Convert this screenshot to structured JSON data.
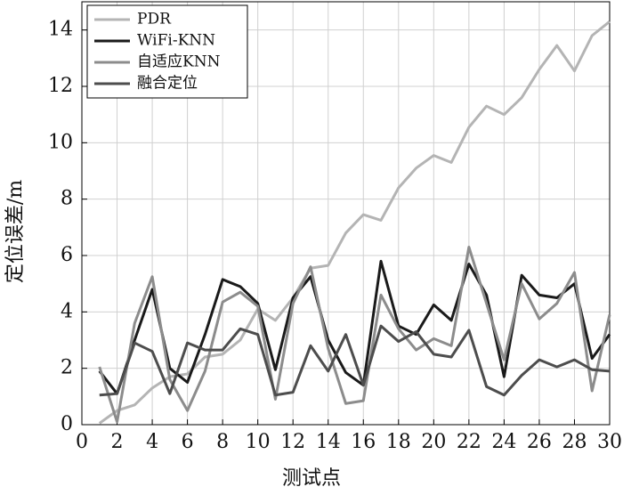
{
  "chart_data": {
    "type": "line",
    "xlabel": "测试点",
    "ylabel": "定位误差/m",
    "x": [
      1,
      2,
      3,
      4,
      5,
      6,
      7,
      8,
      9,
      10,
      11,
      12,
      13,
      14,
      15,
      16,
      17,
      18,
      19,
      20,
      21,
      22,
      23,
      24,
      25,
      26,
      27,
      28,
      29,
      30
    ],
    "series": [
      {
        "name": "PDR",
        "color": "#b4b4b4",
        "values": [
          0.05,
          0.5,
          0.7,
          1.3,
          1.7,
          1.8,
          2.4,
          2.5,
          3.0,
          4.1,
          3.7,
          4.5,
          5.55,
          5.65,
          6.8,
          7.45,
          7.25,
          8.4,
          9.1,
          9.55,
          9.3,
          10.55,
          11.3,
          11.0,
          11.6,
          12.6,
          13.45,
          12.55,
          13.8,
          14.3
        ]
      },
      {
        "name": "WiFi-KNN",
        "color": "#1a1a1a",
        "values": [
          1.9,
          1.1,
          3.0,
          4.8,
          2.0,
          1.5,
          3.2,
          5.15,
          4.9,
          4.3,
          1.95,
          4.5,
          5.25,
          3.0,
          1.85,
          1.4,
          5.8,
          3.5,
          3.2,
          4.25,
          3.7,
          5.7,
          4.6,
          1.7,
          5.3,
          4.6,
          4.5,
          5.0,
          2.35,
          3.2
        ]
      },
      {
        "name": "自适应KNN",
        "color": "#8c8c8c",
        "values": [
          2.05,
          0.1,
          3.6,
          5.25,
          1.6,
          0.5,
          1.9,
          4.35,
          4.7,
          4.2,
          0.9,
          4.3,
          5.6,
          2.7,
          0.75,
          0.85,
          4.6,
          3.4,
          2.65,
          3.05,
          2.8,
          6.3,
          4.3,
          2.3,
          5.0,
          3.75,
          4.3,
          5.4,
          1.2,
          3.9
        ]
      },
      {
        "name": "融合定位",
        "color": "#4d4d4d",
        "values": [
          1.05,
          1.1,
          2.9,
          2.6,
          1.1,
          2.9,
          2.65,
          2.65,
          3.4,
          3.2,
          1.05,
          1.15,
          2.8,
          1.9,
          3.2,
          1.4,
          3.5,
          2.95,
          3.3,
          2.5,
          2.4,
          3.35,
          1.35,
          1.05,
          1.75,
          2.3,
          2.05,
          2.3,
          1.95,
          1.9
        ]
      }
    ],
    "xlim": [
      0,
      30
    ],
    "xticks": [
      0,
      2,
      4,
      6,
      8,
      10,
      12,
      14,
      16,
      18,
      20,
      22,
      24,
      26,
      28,
      30
    ],
    "ylim": [
      0,
      15
    ],
    "yticks": [
      0,
      2,
      4,
      6,
      8,
      10,
      12,
      14
    ],
    "grid": true,
    "legend": "upper-left"
  }
}
